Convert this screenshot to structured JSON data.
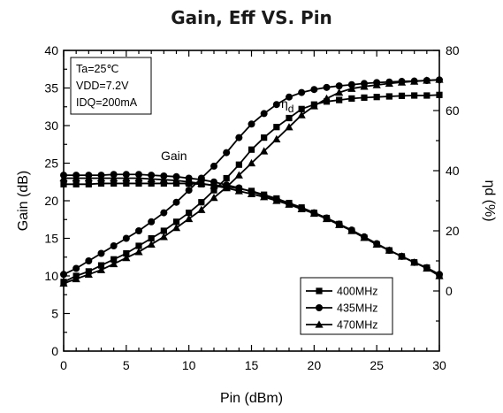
{
  "chart_data": {
    "type": "line",
    "title": "Gain, Eff VS. Pin",
    "xlabel": "Pin (dBm)",
    "ylabel": "Gain (dB)",
    "y2label": "ηd (%)",
    "xlim": [
      0,
      30
    ],
    "ylim": [
      0,
      40
    ],
    "y2lim": [
      -20,
      80
    ],
    "xticks": [
      "0",
      "5",
      "10",
      "15",
      "20",
      "25",
      "30"
    ],
    "yticks": [
      "0",
      "5",
      "10",
      "15",
      "20",
      "25",
      "30",
      "35",
      "40"
    ],
    "y2ticks": [
      "0",
      "20",
      "40",
      "60",
      "80"
    ],
    "grid": false,
    "legend_position": "bottom-right",
    "conditions": [
      "Ta=25℃",
      "VDD=7.2V",
      "IDQ=200mA"
    ],
    "annotations": {
      "gain": "Gain",
      "eff_symbol": "η",
      "eff_sub": "d"
    },
    "x": [
      0,
      1,
      2,
      3,
      4,
      5,
      6,
      7,
      8,
      9,
      10,
      11,
      12,
      13,
      14,
      15,
      16,
      17,
      18,
      19,
      20,
      21,
      22,
      23,
      24,
      25,
      26,
      27,
      28,
      29,
      30
    ],
    "series": [
      {
        "name": "400MHz",
        "marker": "square",
        "gain": [
          22.2,
          22.2,
          22.2,
          22.3,
          22.3,
          22.3,
          22.3,
          22.3,
          22.3,
          22.3,
          22.3,
          22.2,
          22.1,
          21.9,
          21.6,
          21.3,
          20.8,
          20.3,
          19.7,
          19.1,
          18.4,
          17.7,
          16.9,
          16.0,
          15.1,
          14.2,
          13.4,
          12.6,
          11.8,
          11.1,
          10.0
        ],
        "eff": [
          3,
          5,
          6.5,
          8.5,
          10.5,
          12.5,
          15,
          17.5,
          20,
          23,
          26,
          29.5,
          33.5,
          37.5,
          42,
          47,
          51,
          54.5,
          57.5,
          60.5,
          62,
          63,
          63.5,
          64,
          64.3,
          64.5,
          64.7,
          64.9,
          65,
          65,
          65.2
        ]
      },
      {
        "name": "435MHz",
        "marker": "circle",
        "gain": [
          23.4,
          23.4,
          23.4,
          23.4,
          23.5,
          23.5,
          23.5,
          23.4,
          23.3,
          23.2,
          23.0,
          22.8,
          22.5,
          22.1,
          21.7,
          21.2,
          20.7,
          20.2,
          19.6,
          19.0,
          18.4,
          17.7,
          16.9,
          16.1,
          15.2,
          14.3,
          13.4,
          12.6,
          11.8,
          11.1,
          10.2
        ],
        "eff": [
          5.5,
          7.5,
          10,
          12.5,
          15,
          17.5,
          20,
          23,
          26,
          29.5,
          33.5,
          37.5,
          41.5,
          46,
          51,
          55.5,
          59,
          62,
          64.5,
          66,
          67,
          67.7,
          68.2,
          68.6,
          69,
          69.3,
          69.5,
          69.7,
          69.8,
          70,
          70.2
        ]
      },
      {
        "name": "470MHz",
        "marker": "triangle",
        "gain": [
          23.0,
          23.0,
          23.0,
          23.0,
          23.0,
          23.0,
          23.0,
          22.9,
          22.8,
          22.7,
          22.5,
          22.3,
          22.0,
          21.7,
          21.3,
          20.9,
          20.5,
          20.0,
          19.5,
          18.9,
          18.3,
          17.6,
          16.8,
          16.0,
          15.1,
          14.2,
          13.4,
          12.6,
          11.8,
          11.0,
          10.0
        ],
        "eff": [
          2.5,
          4,
          5.5,
          7,
          9,
          11,
          13,
          15.5,
          18,
          21,
          24,
          27,
          31,
          34.5,
          38.5,
          42.5,
          46.5,
          50.5,
          54.5,
          58.5,
          61.5,
          64,
          66,
          67.3,
          68,
          68.5,
          69,
          69.4,
          69.7,
          70,
          70.3
        ]
      }
    ]
  }
}
